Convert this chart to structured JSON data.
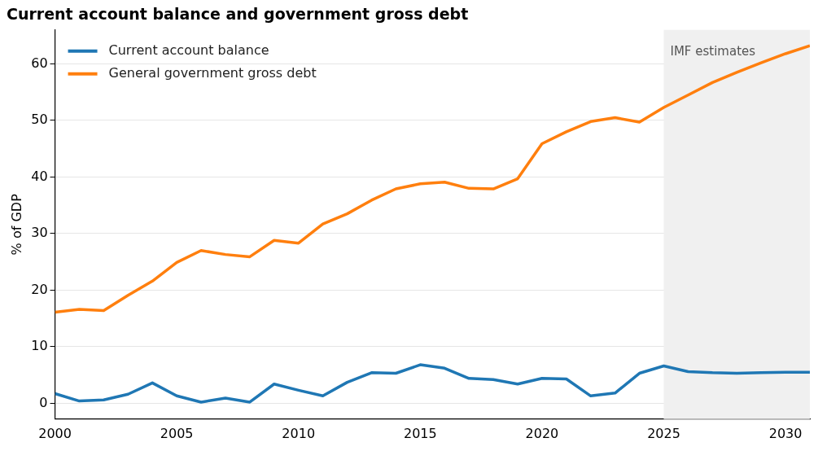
{
  "chart_data": {
    "type": "line",
    "title": "Current account balance and government gross debt",
    "ylabel": "% of GDP",
    "x": [
      2000,
      2001,
      2002,
      2003,
      2004,
      2005,
      2006,
      2007,
      2008,
      2009,
      2010,
      2011,
      2012,
      2013,
      2014,
      2015,
      2016,
      2017,
      2018,
      2019,
      2020,
      2021,
      2022,
      2023,
      2024,
      2025,
      2026,
      2027,
      2028,
      2029,
      2030,
      2031
    ],
    "series": [
      {
        "name": "Current account balance",
        "color": "#1f77b4",
        "values": [
          1.7,
          0.4,
          0.6,
          1.6,
          3.6,
          1.3,
          0.2,
          0.9,
          0.2,
          3.4,
          2.3,
          1.3,
          3.7,
          5.4,
          5.3,
          6.8,
          6.2,
          4.4,
          4.2,
          3.4,
          4.4,
          4.3,
          1.3,
          1.8,
          5.3,
          6.6,
          5.6,
          5.4,
          5.3,
          5.4,
          5.5,
          5.5
        ]
      },
      {
        "name": "General government gross debt",
        "color": "#ff7f0e",
        "values": [
          16.1,
          16.6,
          16.4,
          19.1,
          21.6,
          24.9,
          27.0,
          26.3,
          25.9,
          28.8,
          28.3,
          31.7,
          33.5,
          35.9,
          37.9,
          38.8,
          39.1,
          38.0,
          37.9,
          39.7,
          45.9,
          48.0,
          49.8,
          50.5,
          49.7,
          52.3,
          54.5,
          56.7,
          58.5,
          60.2,
          61.8,
          63.2
        ]
      }
    ],
    "xlim": [
      2000,
      2031
    ],
    "xticks": [
      2000,
      2005,
      2010,
      2015,
      2020,
      2025,
      2030
    ],
    "ylim": [
      -2.8,
      66
    ],
    "yticks": [
      0,
      10,
      20,
      30,
      40,
      50,
      60
    ],
    "bands": [
      {
        "axis": "x",
        "from": 2025,
        "to": 2031,
        "label": "IMF estimates",
        "color": "#f0f0f0"
      }
    ],
    "grid": "y",
    "legend": "top left",
    "marker": "none",
    "line_style": "solid"
  }
}
